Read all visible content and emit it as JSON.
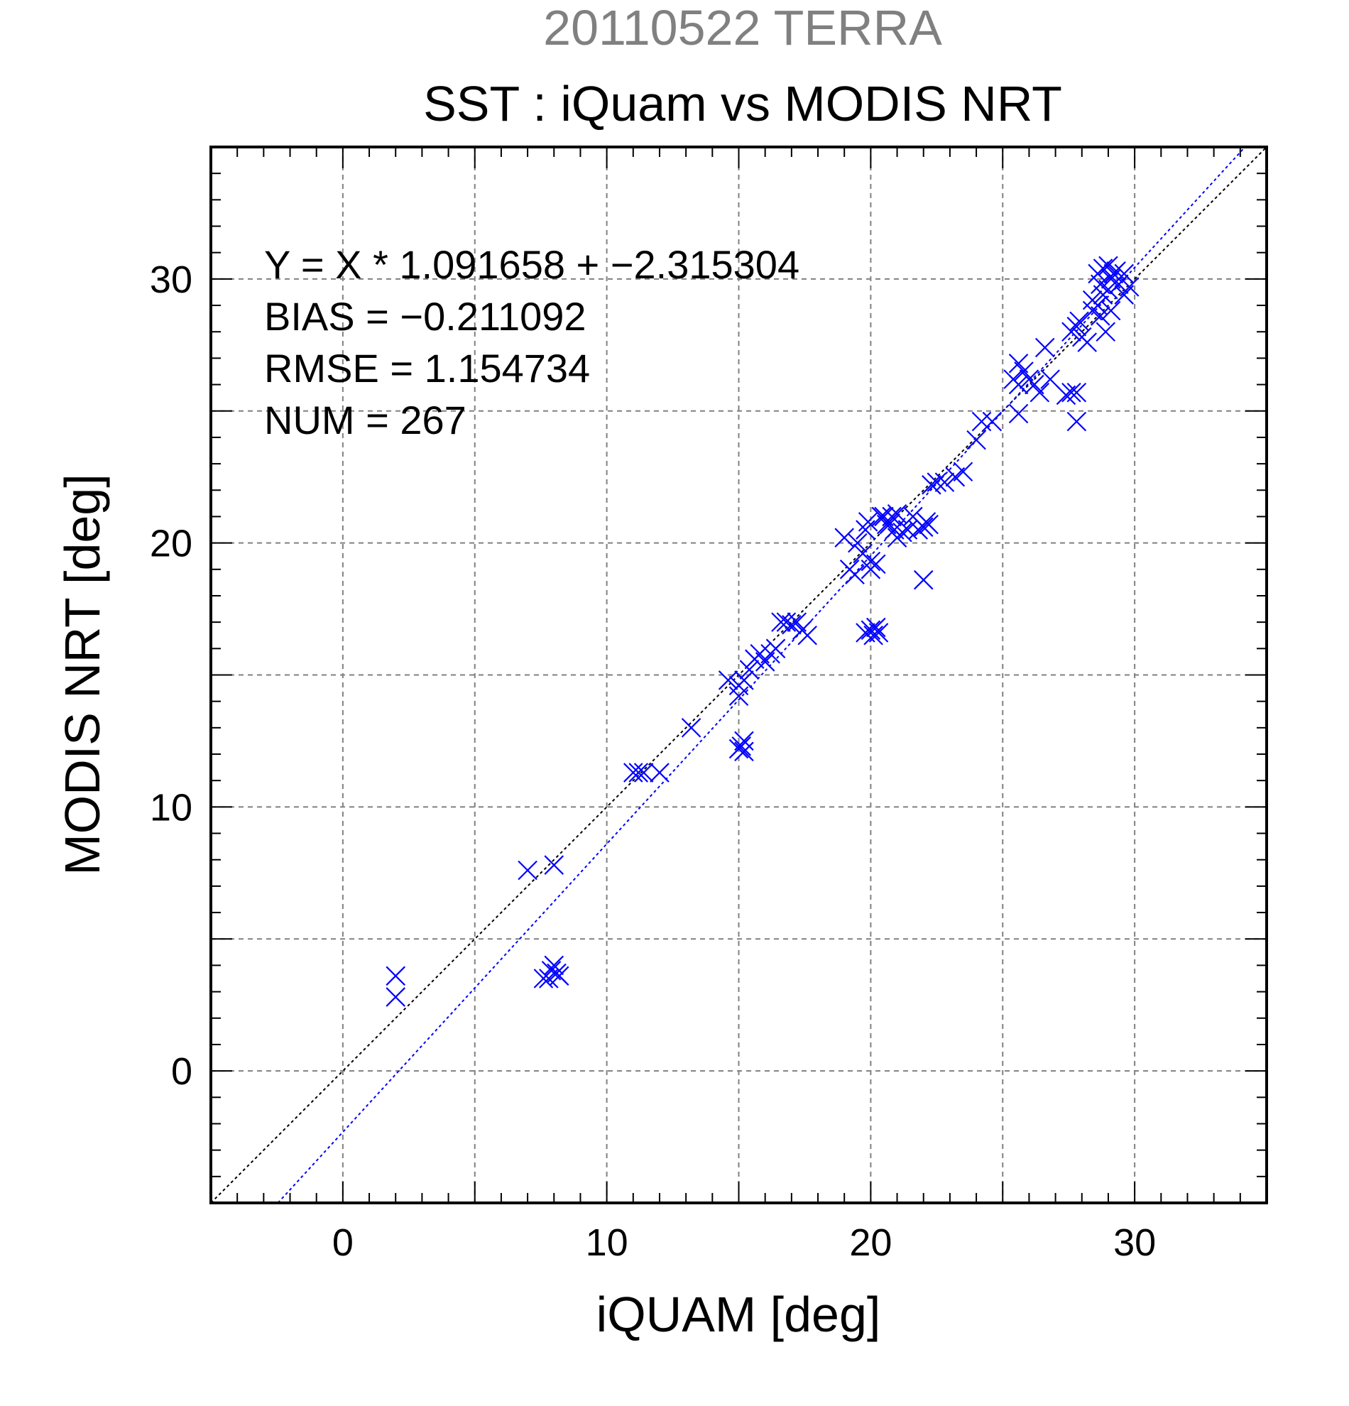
{
  "chart_data": {
    "type": "scatter",
    "supertitle": "20110522 TERRA",
    "title": "SST : iQuam vs MODIS NRT",
    "xlabel": "iQUAM [deg]",
    "ylabel": "MODIS NRT [deg]",
    "xlim": [
      -5,
      35
    ],
    "ylim": [
      -5,
      35
    ],
    "major_ticks": [
      0,
      10,
      20,
      30
    ],
    "minor_step": 1,
    "grid": true,
    "grid_step": 5,
    "annotations": [
      "Y = X * 1.091658 + −2.315304",
      "BIAS = −0.211092",
      "RMSE = 1.154734",
      "NUM = 267"
    ],
    "colors": {
      "points": "#0000ff",
      "fit_line": "#0000ff",
      "identity_line": "#000000",
      "supertitle": "#808080",
      "grid": "#808080"
    },
    "fit_line": {
      "slope": 1.091658,
      "intercept": -2.315304
    },
    "identity_line": {
      "slope": 1,
      "intercept": 0
    },
    "marker": "x",
    "series": [
      {
        "points": [
          [
            2.0,
            3.6
          ],
          [
            2.0,
            2.8
          ],
          [
            7.0,
            7.6
          ],
          [
            8.0,
            7.8
          ],
          [
            7.6,
            3.5
          ],
          [
            7.9,
            3.8
          ],
          [
            8.1,
            3.7
          ],
          [
            8.2,
            3.6
          ],
          [
            7.8,
            3.5
          ],
          [
            8.0,
            4.0
          ],
          [
            11.0,
            11.3
          ],
          [
            11.2,
            11.3
          ],
          [
            11.4,
            11.3
          ],
          [
            12.0,
            11.3
          ],
          [
            13.2,
            13.0
          ],
          [
            14.6,
            14.8
          ],
          [
            15.0,
            14.2
          ],
          [
            15.2,
            14.8
          ],
          [
            15.0,
            14.6
          ],
          [
            15.4,
            15.2
          ],
          [
            15.2,
            12.5
          ],
          [
            15.0,
            12.2
          ],
          [
            15.2,
            12.1
          ],
          [
            15.1,
            12.3
          ],
          [
            15.6,
            15.6
          ],
          [
            15.8,
            15.8
          ],
          [
            16.0,
            15.5
          ],
          [
            16.2,
            15.8
          ],
          [
            16.4,
            16.0
          ],
          [
            16.6,
            17.0
          ],
          [
            16.8,
            17.0
          ],
          [
            17.0,
            16.9
          ],
          [
            17.2,
            17.0
          ],
          [
            17.4,
            16.7
          ],
          [
            17.6,
            16.5
          ],
          [
            19.0,
            20.2
          ],
          [
            19.2,
            19.0
          ],
          [
            19.4,
            18.8
          ],
          [
            19.5,
            20.0
          ],
          [
            19.7,
            19.6
          ],
          [
            19.8,
            20.5
          ],
          [
            19.9,
            20.8
          ],
          [
            20.0,
            19.3
          ],
          [
            20.0,
            19.0
          ],
          [
            20.2,
            19.2
          ],
          [
            20.4,
            21.0
          ],
          [
            20.5,
            21.0
          ],
          [
            20.6,
            20.7
          ],
          [
            20.7,
            20.7
          ],
          [
            20.8,
            21.0
          ],
          [
            20.9,
            20.5
          ],
          [
            21.0,
            21.1
          ],
          [
            21.0,
            20.2
          ],
          [
            21.2,
            20.4
          ],
          [
            21.4,
            20.5
          ],
          [
            21.6,
            21.0
          ],
          [
            21.8,
            20.5
          ],
          [
            22.0,
            20.6
          ],
          [
            22.1,
            20.8
          ],
          [
            22.2,
            20.7
          ],
          [
            22.0,
            18.6
          ],
          [
            19.8,
            16.6
          ],
          [
            20.0,
            16.7
          ],
          [
            20.1,
            16.5
          ],
          [
            20.3,
            16.6
          ],
          [
            20.2,
            16.8
          ],
          [
            22.3,
            22.2
          ],
          [
            22.5,
            22.3
          ],
          [
            22.8,
            22.3
          ],
          [
            23.2,
            22.5
          ],
          [
            23.5,
            22.7
          ],
          [
            24.0,
            23.9
          ],
          [
            24.2,
            24.6
          ],
          [
            24.6,
            24.6
          ],
          [
            25.4,
            26.2
          ],
          [
            25.6,
            26.0
          ],
          [
            25.8,
            26.5
          ],
          [
            26.0,
            26.2
          ],
          [
            25.6,
            26.8
          ],
          [
            26.2,
            26.0
          ],
          [
            26.4,
            25.7
          ],
          [
            26.6,
            27.4
          ],
          [
            26.8,
            26.2
          ],
          [
            25.6,
            24.9
          ],
          [
            27.4,
            25.6
          ],
          [
            27.6,
            25.7
          ],
          [
            27.8,
            25.7
          ],
          [
            27.8,
            24.6
          ],
          [
            27.6,
            28.0
          ],
          [
            27.8,
            28.2
          ],
          [
            28.0,
            27.8
          ],
          [
            28.2,
            27.6
          ],
          [
            27.9,
            28.4
          ],
          [
            28.4,
            28.8
          ],
          [
            28.6,
            29.0
          ],
          [
            28.7,
            28.6
          ],
          [
            28.8,
            29.4
          ],
          [
            28.9,
            28.0
          ],
          [
            29.0,
            29.6
          ],
          [
            29.1,
            30.0
          ],
          [
            29.2,
            30.2
          ],
          [
            29.4,
            29.8
          ],
          [
            29.6,
            30.2
          ],
          [
            29.8,
            29.7
          ],
          [
            28.6,
            30.2
          ],
          [
            28.8,
            30.4
          ],
          [
            29.0,
            30.5
          ],
          [
            29.3,
            30.3
          ],
          [
            29.6,
            29.4
          ],
          [
            28.4,
            29.2
          ],
          [
            28.7,
            29.8
          ],
          [
            29.1,
            28.8
          ]
        ]
      }
    ]
  }
}
